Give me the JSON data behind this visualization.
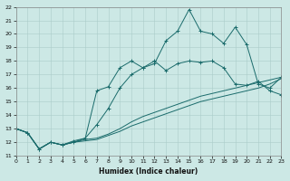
{
  "xlabel": "Humidex (Indice chaleur)",
  "bg_color": "#cce8e5",
  "grid_color": "#aaccca",
  "line_color": "#1a6b6b",
  "xlim": [
    0,
    23
  ],
  "ylim": [
    11,
    22
  ],
  "xticks": [
    0,
    1,
    2,
    3,
    4,
    5,
    6,
    7,
    8,
    9,
    10,
    11,
    12,
    13,
    14,
    15,
    16,
    17,
    18,
    19,
    20,
    21,
    22,
    23
  ],
  "yticks": [
    11,
    12,
    13,
    14,
    15,
    16,
    17,
    18,
    19,
    20,
    21,
    22
  ],
  "s1_x": [
    0,
    1,
    2,
    3,
    4,
    5,
    6,
    7,
    8,
    9,
    10,
    11,
    12,
    13,
    14,
    15,
    16,
    17,
    18,
    19,
    20,
    21,
    22,
    23
  ],
  "s1_y": [
    13.0,
    12.7,
    11.5,
    12.0,
    11.8,
    12.0,
    12.1,
    12.2,
    12.5,
    12.8,
    13.2,
    13.5,
    13.8,
    14.1,
    14.4,
    14.7,
    15.0,
    15.2,
    15.4,
    15.6,
    15.8,
    16.0,
    16.3,
    16.7
  ],
  "s2_x": [
    0,
    1,
    2,
    3,
    4,
    5,
    6,
    7,
    8,
    9,
    10,
    11,
    12,
    13,
    14,
    15,
    16,
    17,
    18,
    19,
    20,
    21,
    22,
    23
  ],
  "s2_y": [
    13.0,
    12.7,
    11.5,
    12.0,
    11.8,
    12.0,
    12.2,
    12.3,
    12.6,
    13.0,
    13.5,
    13.9,
    14.2,
    14.5,
    14.8,
    15.1,
    15.4,
    15.6,
    15.8,
    16.0,
    16.2,
    16.4,
    16.6,
    16.8
  ],
  "s3_x": [
    0,
    1,
    2,
    3,
    4,
    5,
    6,
    7,
    8,
    9,
    10,
    11,
    12,
    13,
    14,
    15,
    16,
    17,
    18,
    19,
    20,
    21,
    22,
    23
  ],
  "s3_y": [
    13.0,
    12.7,
    11.5,
    12.0,
    11.8,
    12.0,
    12.3,
    13.3,
    14.5,
    16.0,
    17.0,
    17.5,
    18.0,
    17.3,
    17.8,
    18.0,
    17.9,
    18.0,
    17.5,
    16.3,
    16.2,
    16.5,
    15.8,
    15.5
  ],
  "s4_x": [
    0,
    1,
    2,
    3,
    4,
    5,
    6,
    7,
    8,
    9,
    10,
    11,
    12,
    13,
    14,
    15,
    16,
    17,
    18,
    19,
    20,
    21,
    22,
    23
  ],
  "s4_y": [
    13.0,
    12.7,
    11.5,
    12.0,
    11.8,
    12.1,
    12.3,
    15.8,
    16.1,
    17.5,
    18.0,
    17.5,
    17.8,
    19.5,
    20.2,
    21.8,
    20.2,
    20.0,
    19.3,
    20.5,
    19.2,
    16.3,
    16.0,
    16.8
  ]
}
